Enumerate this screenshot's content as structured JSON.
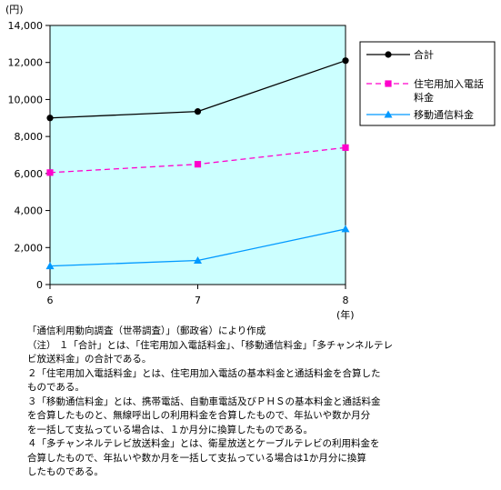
{
  "chart_data": {
    "type": "line",
    "y_unit_label": "(円)",
    "x_unit_label": "(年)",
    "categories": [
      "6",
      "7",
      "8"
    ],
    "ylim": [
      0,
      14000
    ],
    "yticks": [
      "0",
      "2,000",
      "4,000",
      "6,000",
      "8,000",
      "10,000",
      "12,000",
      "14,000"
    ],
    "ytick_values": [
      0,
      2000,
      4000,
      6000,
      8000,
      10000,
      12000,
      14000
    ],
    "grid": false,
    "plot_background": "#ccffff",
    "legend_position": "right",
    "series": [
      {
        "name": "合計",
        "legend_lines": [
          "合計"
        ],
        "values": [
          9000,
          9350,
          12100
        ],
        "color": "#000000",
        "marker": "circle",
        "dash": "solid"
      },
      {
        "name": "住宅用加入電話料金",
        "legend_lines": [
          "住宅用加入電話",
          "料金"
        ],
        "values": [
          6050,
          6500,
          7400
        ],
        "color": "#ff00cc",
        "marker": "square",
        "dash": "dashed"
      },
      {
        "name": "移動通信料金",
        "legend_lines": [
          "移動通信料金"
        ],
        "values": [
          1000,
          1300,
          3000
        ],
        "color": "#0099ff",
        "marker": "triangle",
        "dash": "solid"
      }
    ]
  },
  "notes": {
    "source": "「通信利用動向調査（世帯調査）」（郵政省）により作成",
    "lines": [
      "（注）  １「合計」とは、「住宅用加入電話料金」、「移動通信料金」「多チャンネルテレ",
      "                 ビ放送料金」の合計である。",
      "             ２「住宅用加入電話料金」とは、住宅用加入電話の基本料金と通話料金を合算した",
      "                 ものである。",
      "             ３「移動通信料金」とは、携帯電話、自動車電話及びＰＨＳの基本料金と通話料金",
      "                 を合算したものと、無線呼出しの利用料金を合算したもので、年払いや数か月分",
      "                 を一括して支払っている場合は、１か月分に換算したものである。",
      "             ４「多チャンネルテレビ放送料金」とは、衛星放送とケーブルテレビの利用料金を",
      "                 合算したもので、年払いや数か月を一括して支払っている場合は1か月分に換算",
      "                 したものである。"
    ]
  }
}
